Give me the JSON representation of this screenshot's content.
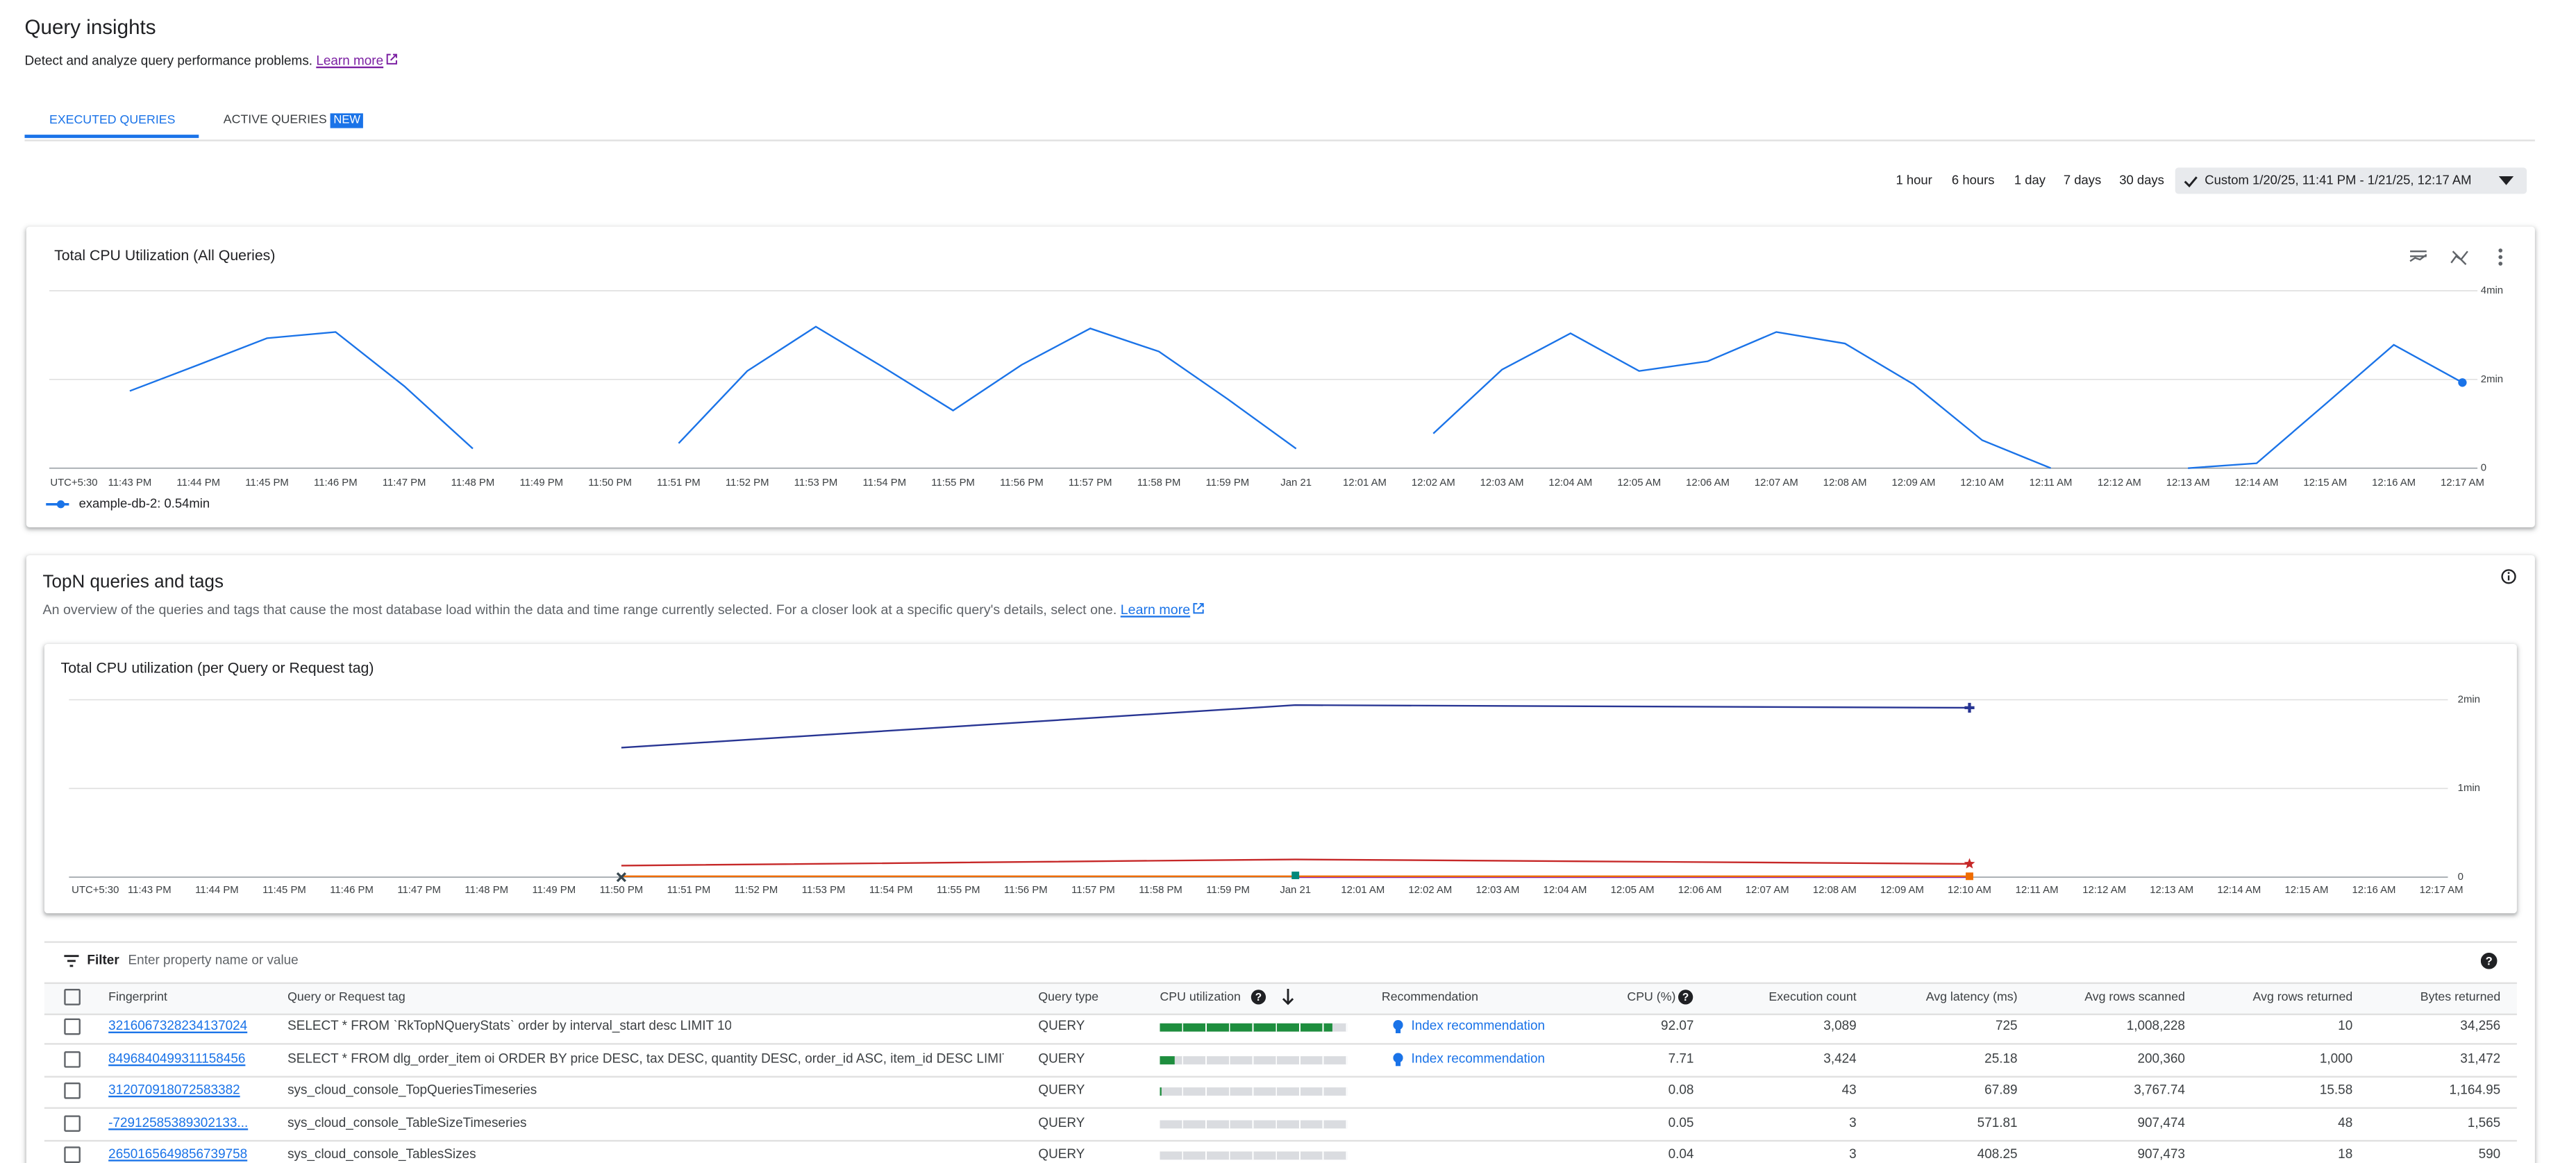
{
  "header": {
    "title": "Query insights",
    "description": "Detect and analyze query performance problems.",
    "learn_more": "Learn more"
  },
  "tabs": [
    {
      "label": "EXECUTED QUERIES"
    },
    {
      "label": "ACTIVE QUERIES",
      "badge": "NEW"
    }
  ],
  "time_ranges": [
    "1 hour",
    "6 hours",
    "1 day",
    "7 days",
    "30 days"
  ],
  "custom_range": "Custom 1/20/25, 11:41 PM - 1/21/25, 12:17 AM",
  "cpu_chart": {
    "type": "line",
    "title": "Total CPU Utilization (All Queries)",
    "timezone": "UTC+5:30",
    "categories": [
      "11:43 PM",
      "11:44 PM",
      "11:45 PM",
      "11:46 PM",
      "11:47 PM",
      "11:48 PM",
      "11:49 PM",
      "11:50 PM",
      "11:51 PM",
      "11:52 PM",
      "11:53 PM",
      "11:54 PM",
      "11:55 PM",
      "11:56 PM",
      "11:57 PM",
      "11:58 PM",
      "11:59 PM",
      "Jan 21",
      "12:01 AM",
      "12:02 AM",
      "12:03 AM",
      "12:04 AM",
      "12:05 AM",
      "12:06 AM",
      "12:07 AM",
      "12:08 AM",
      "12:09 AM",
      "12:10 AM",
      "12:11 AM",
      "12:12 AM",
      "12:13 AM",
      "12:14 AM",
      "12:15 AM",
      "12:16 AM",
      "12:17 AM"
    ],
    "ylim": [
      0,
      4
    ],
    "yticks": [
      0,
      {
        "value": 2,
        "label": "2min"
      },
      {
        "value": 4,
        "label": "4min"
      }
    ],
    "grid": true,
    "series": [
      {
        "name": "example-db-2: 0.54min",
        "color": "#1a73e8",
        "values": [
          1.74,
          2.33,
          2.93,
          3.07,
          1.85,
          0.44,
          null,
          null,
          0.56,
          2.19,
          3.19,
          2.26,
          1.3,
          2.33,
          3.15,
          2.63,
          1.56,
          0.44,
          null,
          0.78,
          2.22,
          3.04,
          2.19,
          2.41,
          3.07,
          2.81,
          1.89,
          0.63,
          0,
          null,
          0,
          0.11,
          1.44,
          2.78,
          1.93
        ]
      }
    ]
  },
  "topn": {
    "title": "TopN queries and tags",
    "description": "An overview of the queries and tags that cause the most database load within the data and time range currently selected. For a closer look at a specific query's details, select one.",
    "learn_more": "Learn more",
    "chart": {
      "type": "line",
      "title": "Total CPU utilization (per Query or Request tag)",
      "timezone": "UTC+5:30",
      "categories": [
        "11:43 PM",
        "11:44 PM",
        "11:45 PM",
        "11:46 PM",
        "11:47 PM",
        "11:48 PM",
        "11:49 PM",
        "11:50 PM",
        "11:51 PM",
        "11:52 PM",
        "11:53 PM",
        "11:54 PM",
        "11:55 PM",
        "11:56 PM",
        "11:57 PM",
        "11:58 PM",
        "11:59 PM",
        "Jan 21",
        "12:01 AM",
        "12:02 AM",
        "12:03 AM",
        "12:04 AM",
        "12:05 AM",
        "12:06 AM",
        "12:07 AM",
        "12:08 AM",
        "12:09 AM",
        "12:10 AM",
        "12:11 AM",
        "12:12 AM",
        "12:13 AM",
        "12:14 AM",
        "12:15 AM",
        "12:16 AM",
        "12:17 AM"
      ],
      "ylim": [
        0,
        2
      ],
      "yticks": [
        0,
        {
          "value": 1,
          "label": "1min"
        },
        {
          "value": 2,
          "label": "2min"
        }
      ],
      "grid": true,
      "series": [
        {
          "color": "#283593",
          "marker": "plus",
          "x": [
            "11:50 PM",
            "Jan 21",
            "12:10 AM"
          ],
          "values": [
            1.46,
            1.94,
            1.91
          ]
        },
        {
          "color": "#c62828",
          "marker": "star",
          "x": [
            "11:50 PM",
            "Jan 21",
            "12:10 AM"
          ],
          "values": [
            0.13,
            0.2,
            0.15
          ]
        },
        {
          "color": "#8e24aa",
          "marker": "none",
          "x": [
            "Jan 21",
            "12:10 AM"
          ],
          "values": [
            0,
            0
          ]
        },
        {
          "color": "#ef6c00",
          "marker": "square",
          "x": [
            "11:50 PM",
            "12:10 AM"
          ],
          "values": [
            0.01,
            0.01
          ]
        },
        {
          "color": "#00897b",
          "marker": "square",
          "x": [
            "Jan 21"
          ],
          "values": [
            0.02
          ]
        },
        {
          "color": "#37474f",
          "marker": "cross",
          "x": [
            "11:50 PM"
          ],
          "values": [
            0
          ]
        }
      ]
    }
  },
  "table": {
    "filter": "Filter",
    "filter_placeholder": "Enter property name or value",
    "columns": [
      "Fingerprint",
      "Query or Request tag",
      "Query type",
      "CPU utilization",
      "Recommendation",
      "CPU (%)",
      "Execution count",
      "Avg latency (ms)",
      "Avg rows scanned",
      "Avg rows returned",
      "Bytes returned"
    ],
    "rows": [
      {
        "fingerprint": "3216067328234137024",
        "query": "SELECT * FROM `RkTopNQueryStats` order by interval_start desc LIMIT 10",
        "type": "QUERY",
        "cpu": 92.07,
        "recommendation": "Index recommendation",
        "executions": "3,089",
        "latency": "725",
        "scanned": "1,008,228",
        "returned": "10",
        "bytes": "34,256"
      },
      {
        "fingerprint": "8496840499311158456",
        "query": "SELECT * FROM dlg_order_item oi ORDER BY price DESC, tax DESC, quantity DESC, order_id ASC, item_id DESC LIMIT ...",
        "type": "QUERY",
        "cpu": 7.71,
        "recommendation": "Index recommendation",
        "executions": "3,424",
        "latency": "25.18",
        "scanned": "200,360",
        "returned": "1,000",
        "bytes": "31,472"
      },
      {
        "fingerprint": "312070918072583382",
        "query": "sys_cloud_console_TopQueriesTimeseries",
        "type": "QUERY",
        "cpu": 0.08,
        "executions": "43",
        "latency": "67.89",
        "scanned": "3,767.74",
        "returned": "15.58",
        "bytes": "1,164.95"
      },
      {
        "fingerprint": "-72912585389302133...",
        "query": "sys_cloud_console_TableSizeTimeseries",
        "type": "QUERY",
        "cpu": 0.05,
        "executions": "3",
        "latency": "571.81",
        "scanned": "907,474",
        "returned": "48",
        "bytes": "1,565"
      },
      {
        "fingerprint": "2650165649856739758",
        "query": "sys_cloud_console_TablesSizes",
        "type": "QUERY",
        "cpu": 0.04,
        "executions": "3",
        "latency": "408.25",
        "scanned": "907,473",
        "returned": "18",
        "bytes": "590"
      }
    ]
  }
}
